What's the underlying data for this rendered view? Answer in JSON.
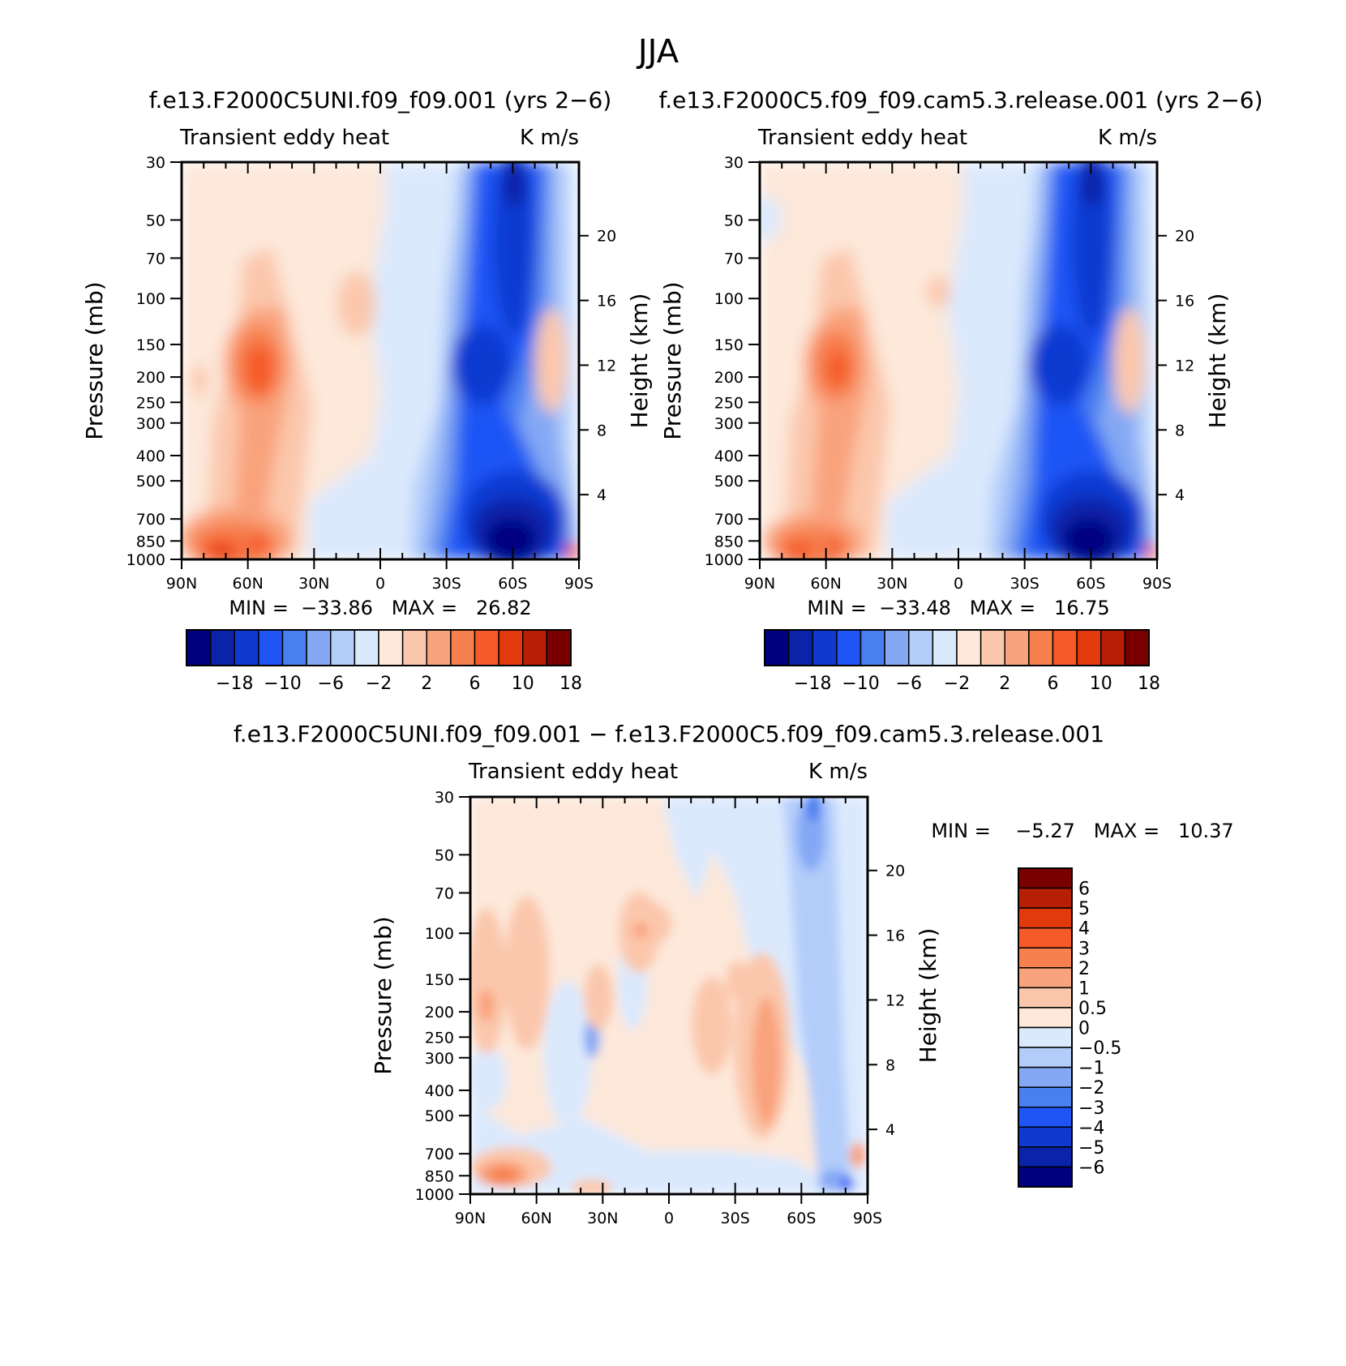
{
  "figure": {
    "title": "JJA"
  },
  "panels": [
    {
      "id": "top-left",
      "case_title": "f.e13.F2000C5UNI.f09_f09.001 (yrs 2−6)",
      "left_string": "Transient eddy heat",
      "right_string": "K m/s",
      "stats": "MIN =  −33.86   MAX =   26.82"
    },
    {
      "id": "top-right",
      "case_title": "f.e13.F2000C5.f09_f09.cam5.3.release.001 (yrs 2−6)",
      "left_string": "Transient eddy heat",
      "right_string": "K m/s",
      "stats": "MIN =  −33.48   MAX =   16.75"
    },
    {
      "id": "bottom-diff",
      "case_title": "f.e13.F2000C5UNI.f09_f09.001 − f.e13.F2000C5.f09_f09.cam5.3.release.001",
      "left_string": "Transient eddy heat",
      "right_string": "K m/s",
      "stats": "MIN =    −5.27   MAX =   10.37"
    }
  ],
  "axes": {
    "ylabel": "Pressure (mb)",
    "ylabel_right": "Height (km)",
    "pressure_ticks": [
      "30",
      "50",
      "70",
      "100",
      "150",
      "200",
      "250",
      "300",
      "400",
      "500",
      "700",
      "850",
      "1000"
    ],
    "height_ticks": [
      "20",
      "16",
      "12",
      "8",
      "4"
    ],
    "lat_ticks": [
      "90N",
      "60N",
      "30N",
      "0",
      "30S",
      "60S",
      "90S"
    ]
  },
  "colorbars": {
    "main": {
      "colors": [
        "#00007f",
        "#0a23a8",
        "#0f3ad2",
        "#1f55f5",
        "#4a7ff0",
        "#84a8f4",
        "#b3cdfa",
        "#dbe9fd",
        "#fde8da",
        "#fbc7ac",
        "#f9a37d",
        "#f7804f",
        "#f55a28",
        "#e23a0d",
        "#b71f05",
        "#7a0000"
      ],
      "labels": [
        "−18",
        "−10",
        "−6",
        "−2",
        "2",
        "6",
        "10",
        "18"
      ]
    },
    "diff": {
      "colors": [
        "#7a0000",
        "#b71f05",
        "#e23a0d",
        "#f55a28",
        "#f7804f",
        "#f9a37d",
        "#fbc7ac",
        "#fde8da",
        "#dbe9fd",
        "#b3cdfa",
        "#84a8f4",
        "#4a7ff0",
        "#1f55f5",
        "#0f3ad2",
        "#0a23a8",
        "#00007f"
      ],
      "labels": [
        "6",
        "5",
        "4",
        "3",
        "2",
        "1",
        "0.5",
        "0",
        "−0.5",
        "−1",
        "−2",
        "−3",
        "−4",
        "−5",
        "−6"
      ]
    }
  },
  "chart_data": [
    {
      "type": "heatmap",
      "panel": "top-left",
      "title": "f.e13.F2000C5UNI.f09_f09.001 (yrs 2−6)",
      "xlabel": "",
      "ylabel": "Pressure (mb)",
      "ylabel_right": "Height (km)",
      "x_range": [
        "90N",
        "90S"
      ],
      "y_range_mb": [
        1000,
        30
      ],
      "y_scale": "log",
      "units": "K m/s",
      "min": -33.86,
      "max": 26.82,
      "levels": [
        -18,
        -14,
        -10,
        -8,
        -6,
        -4,
        -2,
        0,
        2,
        4,
        6,
        8,
        10,
        14,
        18
      ]
    },
    {
      "type": "heatmap",
      "panel": "top-right",
      "title": "f.e13.F2000C5.f09_f09.cam5.3.release.001 (yrs 2−6)",
      "xlabel": "",
      "ylabel": "Pressure (mb)",
      "ylabel_right": "Height (km)",
      "x_range": [
        "90N",
        "90S"
      ],
      "y_range_mb": [
        1000,
        30
      ],
      "y_scale": "log",
      "units": "K m/s",
      "min": -33.48,
      "max": 16.75,
      "levels": [
        -18,
        -14,
        -10,
        -8,
        -6,
        -4,
        -2,
        0,
        2,
        4,
        6,
        8,
        10,
        14,
        18
      ]
    },
    {
      "type": "heatmap",
      "panel": "bottom-diff",
      "title": "f.e13.F2000C5UNI.f09_f09.001 − f.e13.F2000C5.f09_f09.cam5.3.release.001",
      "xlabel": "",
      "ylabel": "Pressure (mb)",
      "ylabel_right": "Height (km)",
      "x_range": [
        "90N",
        "90S"
      ],
      "y_range_mb": [
        1000,
        30
      ],
      "y_scale": "log",
      "units": "K m/s",
      "min": -5.27,
      "max": 10.37,
      "levels": [
        -6,
        -5,
        -4,
        -3,
        -2,
        -1,
        -0.5,
        0,
        0.5,
        1,
        2,
        3,
        4,
        5,
        6
      ]
    }
  ]
}
